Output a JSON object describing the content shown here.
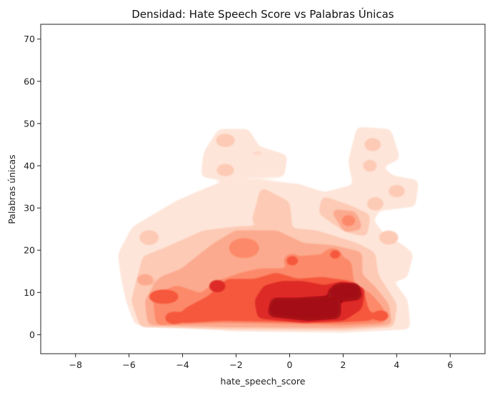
{
  "chart_data": {
    "type": "kde-contour",
    "title": "Densidad: Hate Speech Score vs Palabras Únicas",
    "xlabel": "hate_speech_score",
    "ylabel": "Palabras únicas",
    "xlim": [
      -9.3,
      7.3
    ],
    "ylim": [
      -4.5,
      73.5
    ],
    "x_ticks": [
      "−8",
      "−6",
      "−4",
      "−2",
      "0",
      "2",
      "4",
      "6"
    ],
    "y_ticks": [
      "0",
      "10",
      "20",
      "30",
      "40",
      "50",
      "60",
      "70"
    ],
    "colormap": "Reds",
    "levels": [
      "#fee5d9",
      "#fdcab5",
      "#fcaa8f",
      "#fc8a6a",
      "#f6583e",
      "#de2b25",
      "#a50f15"
    ],
    "grid": false,
    "legend": "none",
    "density_regions": [
      {
        "level": 0,
        "shape": "poly",
        "points": [
          [
            -5.7,
            3
          ],
          [
            -2,
            1.5
          ],
          [
            2,
            1.2
          ],
          [
            4.4,
            2
          ],
          [
            4.3,
            8
          ],
          [
            3.7,
            13
          ],
          [
            4.3,
            14
          ],
          [
            4.5,
            19
          ],
          [
            4.1,
            21
          ],
          [
            3.5,
            23
          ],
          [
            3,
            27
          ],
          [
            3.3,
            30
          ],
          [
            4.6,
            31
          ],
          [
            4.7,
            36
          ],
          [
            3.8,
            37
          ],
          [
            3.3,
            40
          ],
          [
            4,
            42
          ],
          [
            3.7,
            48
          ],
          [
            2.6,
            48.5
          ],
          [
            2.3,
            41
          ],
          [
            2.5,
            35
          ],
          [
            1.3,
            33
          ],
          [
            0.3,
            35
          ],
          [
            -1.2,
            36
          ],
          [
            -2.5,
            35.5
          ],
          [
            -3.3,
            33.5
          ],
          [
            -4.2,
            31
          ],
          [
            -5,
            28
          ],
          [
            -5.8,
            25
          ],
          [
            -6.3,
            19
          ],
          [
            -6.2,
            14
          ],
          [
            -6,
            8
          ]
        ]
      },
      {
        "level": 0,
        "shape": "poly",
        "points": [
          [
            -3.2,
            38
          ],
          [
            -3.1,
            43
          ],
          [
            -2.6,
            48
          ],
          [
            -1.6,
            48
          ],
          [
            -1.2,
            44
          ],
          [
            -0.2,
            42
          ],
          [
            -0.3,
            38
          ],
          [
            -1.5,
            38
          ],
          [
            -2.3,
            37
          ]
        ]
      },
      {
        "level": 1,
        "shape": "poly",
        "points": [
          [
            -5.5,
            2.5
          ],
          [
            -2,
            2
          ],
          [
            2,
            1.8
          ],
          [
            3.8,
            2.5
          ],
          [
            3.9,
            7
          ],
          [
            3.5,
            11
          ],
          [
            3.2,
            14
          ],
          [
            3.1,
            19
          ],
          [
            2.5,
            21
          ],
          [
            1,
            24
          ],
          [
            -0.7,
            25
          ],
          [
            -1.8,
            25
          ],
          [
            -3.2,
            24
          ],
          [
            -4.6,
            20
          ],
          [
            -5.4,
            18
          ],
          [
            -5.6,
            13
          ],
          [
            -5.8,
            8
          ]
        ]
      },
      {
        "level": 1,
        "shape": "poly",
        "points": [
          [
            -1,
            34
          ],
          [
            -1.3,
            27
          ],
          [
            0,
            24.5
          ],
          [
            -0.1,
            31
          ]
        ]
      },
      {
        "level": 1,
        "shape": "poly",
        "points": [
          [
            1.3,
            32
          ],
          [
            1.2,
            29
          ],
          [
            2.1,
            25
          ],
          [
            2.8,
            24
          ],
          [
            2.9,
            28
          ],
          [
            2.2,
            30
          ]
        ]
      },
      {
        "level": 1,
        "shape": "circle",
        "cx": -5.25,
        "cy": 23,
        "rx": 0.35,
        "ry": 1.6
      },
      {
        "level": 1,
        "shape": "circle",
        "cx": 3.7,
        "cy": 23,
        "rx": 0.35,
        "ry": 1.5
      },
      {
        "level": 1,
        "shape": "circle",
        "cx": 3.2,
        "cy": 31,
        "rx": 0.3,
        "ry": 1.4
      },
      {
        "level": 1,
        "shape": "circle",
        "cx": 4.0,
        "cy": 34,
        "rx": 0.3,
        "ry": 1.3
      },
      {
        "level": 1,
        "shape": "circle",
        "cx": 3.1,
        "cy": 45,
        "rx": 0.3,
        "ry": 1.4
      },
      {
        "level": 1,
        "shape": "circle",
        "cx": 3.0,
        "cy": 40,
        "rx": 0.25,
        "ry": 1.3
      },
      {
        "level": 1,
        "shape": "circle",
        "cx": -2.4,
        "cy": 46,
        "rx": 0.35,
        "ry": 1.4
      },
      {
        "level": 1,
        "shape": "circle",
        "cx": -2.4,
        "cy": 39,
        "rx": 0.32,
        "ry": 1.3
      },
      {
        "level": 1,
        "shape": "circle",
        "cx": -1.2,
        "cy": 43,
        "rx": 0.3,
        "ry": 0.35
      },
      {
        "level": 2,
        "shape": "poly",
        "points": [
          [
            -5.2,
            3
          ],
          [
            -2.5,
            2.5
          ],
          [
            2,
            2.3
          ],
          [
            3.7,
            3
          ],
          [
            3.6,
            7
          ],
          [
            3.1,
            11
          ],
          [
            2.6,
            14
          ],
          [
            2.6,
            19
          ],
          [
            1.6,
            20.5
          ],
          [
            0.5,
            21
          ],
          [
            -0.5,
            24
          ],
          [
            -2,
            24
          ],
          [
            -2.8,
            21
          ],
          [
            -4,
            15
          ],
          [
            -4.8,
            13
          ],
          [
            -5.3,
            8
          ]
        ]
      },
      {
        "level": 2,
        "shape": "poly",
        "points": [
          [
            1.7,
            29
          ],
          [
            2.1,
            25
          ],
          [
            2.6,
            25.5
          ],
          [
            2.4,
            28.5
          ]
        ]
      },
      {
        "level": 2,
        "shape": "circle",
        "cx": -5.4,
        "cy": 13,
        "rx": 0.3,
        "ry": 1.2
      },
      {
        "level": 3,
        "shape": "poly",
        "points": [
          [
            -4.9,
            3
          ],
          [
            -2.5,
            3.5
          ],
          [
            2,
            3
          ],
          [
            3.5,
            3.5
          ],
          [
            3.4,
            6
          ],
          [
            3.0,
            9
          ],
          [
            2.3,
            12
          ],
          [
            2.2,
            17
          ],
          [
            1.6,
            18.5
          ],
          [
            0.5,
            18
          ],
          [
            -0.1,
            15
          ],
          [
            -1.1,
            15
          ],
          [
            -1.8,
            14
          ],
          [
            -2.7,
            12
          ],
          [
            -3.3,
            9
          ],
          [
            -4.2,
            11
          ],
          [
            -5.0,
            9
          ]
        ]
      },
      {
        "level": 3,
        "shape": "circle",
        "cx": -1.7,
        "cy": 20.5,
        "rx": 0.55,
        "ry": 2.2
      },
      {
        "level": 3,
        "shape": "circle",
        "cx": 1.6,
        "cy": 18.5,
        "rx": 0.35,
        "ry": 1.8
      },
      {
        "level": 3,
        "shape": "circle",
        "cx": 0.1,
        "cy": 17.5,
        "rx": 0.3,
        "ry": 1.5
      },
      {
        "level": 3,
        "shape": "circle",
        "cx": 2.2,
        "cy": 27,
        "rx": 0.25,
        "ry": 1.2
      },
      {
        "level": 4,
        "shape": "poly",
        "points": [
          [
            -3.9,
            3.5
          ],
          [
            -2.5,
            4
          ],
          [
            1.5,
            3.5
          ],
          [
            3,
            4
          ],
          [
            2.8,
            6.5
          ],
          [
            2.7,
            9.5
          ],
          [
            2.3,
            12
          ],
          [
            1.2,
            13
          ],
          [
            0.3,
            12.5
          ],
          [
            -0.5,
            14
          ],
          [
            -1.3,
            12.5
          ],
          [
            -2.3,
            12.5
          ],
          [
            -3.0,
            8.5
          ],
          [
            -3.9,
            5.5
          ]
        ]
      },
      {
        "level": 4,
        "shape": "circle",
        "cx": -4.7,
        "cy": 9,
        "rx": 0.55,
        "ry": 1.5
      },
      {
        "level": 4,
        "shape": "circle",
        "cx": -4.3,
        "cy": 4,
        "rx": 0.35,
        "ry": 1.3
      },
      {
        "level": 4,
        "shape": "circle",
        "cx": -3.0,
        "cy": 6,
        "rx": 0.4,
        "ry": 1.4
      },
      {
        "level": 4,
        "shape": "circle",
        "cx": 0.1,
        "cy": 17.5,
        "rx": 0.22,
        "ry": 1.0
      },
      {
        "level": 4,
        "shape": "circle",
        "cx": 1.7,
        "cy": 19,
        "rx": 0.2,
        "ry": 0.9
      },
      {
        "level": 4,
        "shape": "circle",
        "cx": 3.4,
        "cy": 4.5,
        "rx": 0.3,
        "ry": 1.1
      },
      {
        "level": 5,
        "shape": "poly",
        "points": [
          [
            -1.1,
            4.5
          ],
          [
            0.5,
            3.5
          ],
          [
            2,
            4
          ],
          [
            2.6,
            6.5
          ],
          [
            2.7,
            10.5
          ],
          [
            2.0,
            12
          ],
          [
            1.3,
            11
          ],
          [
            0.5,
            12
          ],
          [
            -0.3,
            12
          ],
          [
            -0.9,
            11
          ],
          [
            -1.2,
            8
          ]
        ]
      },
      {
        "level": 5,
        "shape": "circle",
        "cx": -2.7,
        "cy": 11.5,
        "rx": 0.3,
        "ry": 1.3
      },
      {
        "level": 6,
        "shape": "poly",
        "points": [
          [
            -0.7,
            5
          ],
          [
            0.7,
            4
          ],
          [
            1.8,
            4.5
          ],
          [
            1.8,
            7.5
          ],
          [
            1.4,
            8.5
          ],
          [
            0.3,
            8
          ],
          [
            -0.6,
            8
          ]
        ]
      },
      {
        "level": 6,
        "shape": "poly",
        "points": [
          [
            1.5,
            10
          ],
          [
            1.8,
            11.5
          ],
          [
            2.5,
            11.5
          ],
          [
            2.6,
            9
          ],
          [
            2.0,
            8.5
          ]
        ]
      }
    ]
  }
}
